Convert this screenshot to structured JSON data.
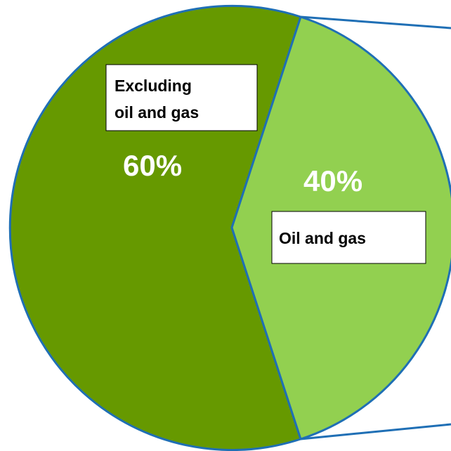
{
  "chart_data": {
    "type": "pie",
    "title": "",
    "slices": [
      {
        "label_lines": [
          "Excluding",
          "oil and gas"
        ],
        "value": 60,
        "percent_label": "60%",
        "color": "#669900"
      },
      {
        "label_lines": [
          "Oil and gas"
        ],
        "value": 40,
        "percent_label": "40%",
        "color": "#92D050"
      }
    ],
    "border_color": "#1F6FB5",
    "legend": "none"
  }
}
